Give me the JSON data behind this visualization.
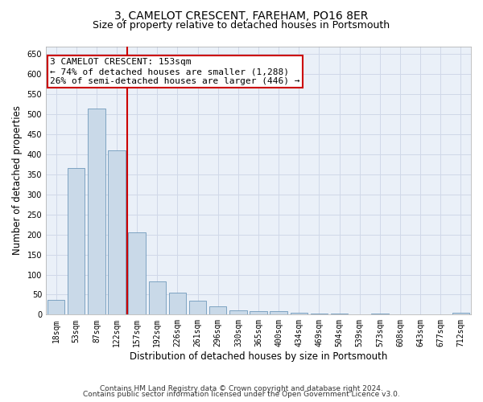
{
  "title": "3, CAMELOT CRESCENT, FAREHAM, PO16 8ER",
  "subtitle": "Size of property relative to detached houses in Portsmouth",
  "xlabel": "Distribution of detached houses by size in Portsmouth",
  "ylabel": "Number of detached properties",
  "categories": [
    "18sqm",
    "53sqm",
    "87sqm",
    "122sqm",
    "157sqm",
    "192sqm",
    "226sqm",
    "261sqm",
    "296sqm",
    "330sqm",
    "365sqm",
    "400sqm",
    "434sqm",
    "469sqm",
    "504sqm",
    "539sqm",
    "573sqm",
    "608sqm",
    "643sqm",
    "677sqm",
    "712sqm"
  ],
  "values": [
    37,
    365,
    515,
    410,
    205,
    83,
    55,
    34,
    21,
    11,
    8,
    8,
    5,
    3,
    3,
    0,
    3,
    0,
    0,
    0,
    4
  ],
  "bar_color": "#c9d9e8",
  "bar_edge_color": "#5a8ab0",
  "annotation_line1": "3 CAMELOT CRESCENT: 153sqm",
  "annotation_line2": "← 74% of detached houses are smaller (1,288)",
  "annotation_line3": "26% of semi-detached houses are larger (446) →",
  "marker_color": "#cc0000",
  "annotation_box_edge": "#cc0000",
  "grid_color": "#d0d8e8",
  "background_color": "#eaf0f8",
  "ylim": [
    0,
    670
  ],
  "yticks": [
    0,
    50,
    100,
    150,
    200,
    250,
    300,
    350,
    400,
    450,
    500,
    550,
    600,
    650
  ],
  "footer_line1": "Contains HM Land Registry data © Crown copyright and database right 2024.",
  "footer_line2": "Contains public sector information licensed under the Open Government Licence v3.0.",
  "title_fontsize": 10,
  "subtitle_fontsize": 9,
  "axis_label_fontsize": 8.5,
  "tick_fontsize": 7,
  "annotation_fontsize": 8,
  "footer_fontsize": 6.5
}
